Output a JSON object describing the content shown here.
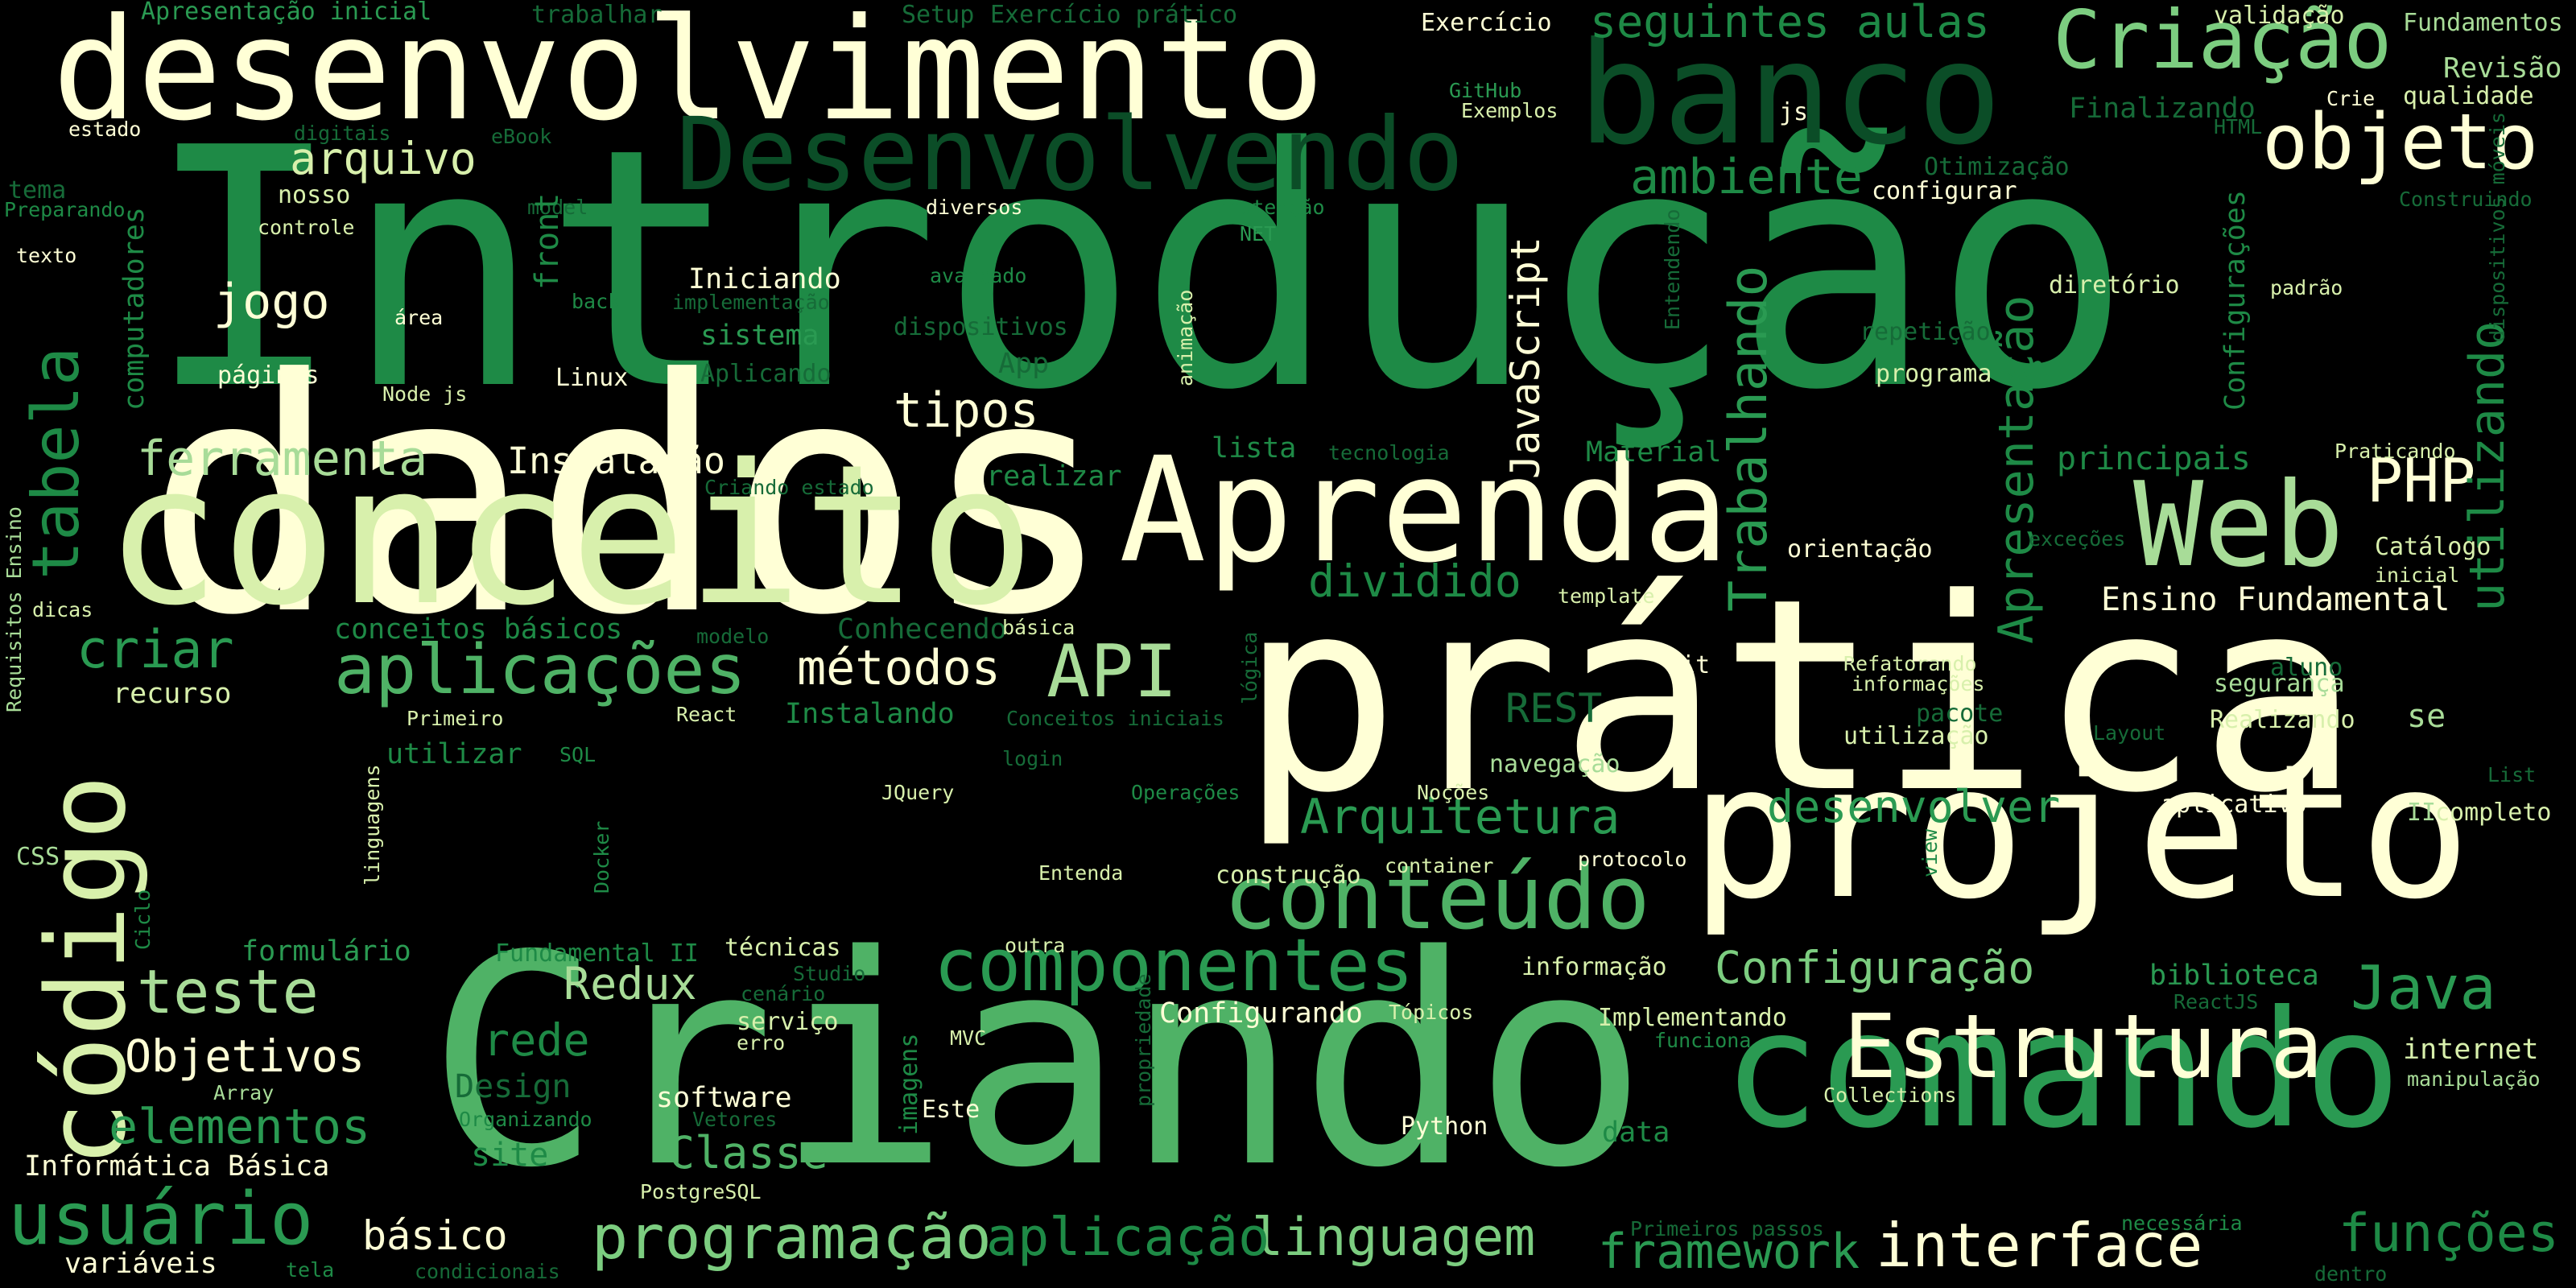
{
  "words": [
    {
      "text": "Introdução",
      "color": "#1e8a46"
    },
    {
      "text": "dados",
      "color": "#ffffd6"
    },
    {
      "text": "prática",
      "color": "#ffffd6"
    },
    {
      "text": "Criando",
      "color": "#4fb266"
    },
    {
      "text": "conceito",
      "color": "#d8f0ac"
    },
    {
      "text": "desenvolvimento",
      "color": "#ffffd6"
    },
    {
      "text": "projeto",
      "color": "#ffffd6"
    },
    {
      "text": "comando",
      "color": "#2a9a52"
    },
    {
      "text": "banco",
      "color": "#0b4d27"
    },
    {
      "text": "Aprenda",
      "color": "#ffffd6"
    },
    {
      "text": "código",
      "color": "#d8f0ac"
    },
    {
      "text": "Estrutura",
      "color": "#ffffd6"
    },
    {
      "text": "Web",
      "color": "#a8dc98"
    },
    {
      "text": "Desenvolvendo",
      "color": "#0b4d27"
    },
    {
      "text": "conteúdo",
      "color": "#4fb266"
    },
    {
      "text": "componentes",
      "color": "#2a9a52"
    },
    {
      "text": "Criação",
      "color": "#7ccd80"
    },
    {
      "text": "objeto",
      "color": "#ffffd6"
    },
    {
      "text": "aplicações",
      "color": "#4fb266"
    },
    {
      "text": "API",
      "color": "#a8dc98"
    },
    {
      "text": "tabela",
      "color": "#1e8a46"
    },
    {
      "text": "PHP",
      "color": "#ffffd6"
    },
    {
      "text": "Java",
      "color": "#2a9a52"
    },
    {
      "text": "usuário",
      "color": "#2a9a52"
    },
    {
      "text": "programação",
      "color": "#7ccd80"
    },
    {
      "text": "interface",
      "color": "#ffffd6"
    },
    {
      "text": "linguagem",
      "color": "#7ccd80"
    },
    {
      "text": "aplicação",
      "color": "#1e8a46"
    },
    {
      "text": "funções",
      "color": "#1e8a46"
    },
    {
      "text": "framework",
      "color": "#2a9a52"
    },
    {
      "text": "Trabalhando",
      "color": "#2a9a52"
    },
    {
      "text": "Apresentação",
      "color": "#1e8a46"
    },
    {
      "text": "utilizando",
      "color": "#1e8a46"
    },
    {
      "text": "Configuração",
      "color": "#7ccd80"
    },
    {
      "text": "Arquitetura",
      "color": "#2a9a52"
    },
    {
      "text": "desenvolver",
      "color": "#2a9a52"
    },
    {
      "text": "métodos",
      "color": "#ffffd6"
    },
    {
      "text": "criar",
      "color": "#2a9a52"
    },
    {
      "text": "teste",
      "color": "#a8dc98"
    },
    {
      "text": "rede",
      "color": "#1e8a46"
    },
    {
      "text": "Redux",
      "color": "#a8dc98"
    },
    {
      "text": "Classe",
      "color": "#4fb266"
    },
    {
      "text": "elementos",
      "color": "#2a9a52"
    },
    {
      "text": "Objetivos",
      "color": "#ffffd6"
    },
    {
      "text": "seguintes aulas",
      "color": "#1e8a46"
    },
    {
      "text": "arquivo",
      "color": "#d8f0ac"
    },
    {
      "text": "ambiente",
      "color": "#1e8a46"
    },
    {
      "text": "jogo",
      "color": "#ffffd6"
    },
    {
      "text": "ferramenta",
      "color": "#a8dc98"
    },
    {
      "text": "tipos",
      "color": "#ffffd6"
    },
    {
      "text": "dividido",
      "color": "#1e8a46"
    },
    {
      "text": "JavaScript",
      "color": "#ffffd6"
    },
    {
      "text": "Instalação",
      "color": "#ffffd6"
    },
    {
      "text": "principais",
      "color": "#1e8a46"
    },
    {
      "text": "Ensino Fundamental",
      "color": "#ffffd6"
    },
    {
      "text": "básico",
      "color": "#ffffd6"
    },
    {
      "text": "site",
      "color": "#1e8a46"
    },
    {
      "text": "Design",
      "color": "#166b38"
    },
    {
      "text": "REST",
      "color": "#166b38"
    },
    {
      "text": "Revisão",
      "color": "#a8dc98"
    },
    {
      "text": "qualidade",
      "color": "#d8f0ac"
    },
    {
      "text": "Fundamentos",
      "color": "#a8dc98"
    },
    {
      "text": "validação",
      "color": "#d8f0ac"
    },
    {
      "text": "Exercício",
      "color": "#ffffd6"
    },
    {
      "text": "Setup",
      "color": "#166b38"
    },
    {
      "text": "Exercício prático",
      "color": "#166b38"
    },
    {
      "text": "Apresentação inicial",
      "color": "#2a9a52"
    },
    {
      "text": "trabalhar",
      "color": "#166b38"
    },
    {
      "text": "Finalizando",
      "color": "#166b38"
    },
    {
      "text": "Otimização",
      "color": "#166b38"
    },
    {
      "text": "GitHub",
      "color": "#2a9a52"
    },
    {
      "text": "Exemplos",
      "color": "#d8f0ac"
    },
    {
      "text": "js",
      "color": "#ffffd6"
    },
    {
      "text": "HTML",
      "color": "#166b38"
    },
    {
      "text": "Crie",
      "color": "#ffffd6"
    },
    {
      "text": "configurar",
      "color": "#ffffd6"
    },
    {
      "text": "Construindo",
      "color": "#166b38"
    },
    {
      "text": "estado",
      "color": "#ffffd6"
    },
    {
      "text": "digitais",
      "color": "#166b38"
    },
    {
      "text": "eBook",
      "color": "#166b38"
    },
    {
      "text": "tema",
      "color": "#166b38"
    },
    {
      "text": "nosso",
      "color": "#d8f0ac"
    },
    {
      "text": "Preparando",
      "color": "#1e8a46"
    },
    {
      "text": "controle",
      "color": "#d8f0ac"
    },
    {
      "text": "model",
      "color": "#166b38"
    },
    {
      "text": "diversos",
      "color": "#ffffd6"
    },
    {
      "text": "manutenção",
      "color": "#1e8a46"
    },
    {
      "text": "NET",
      "color": "#2a9a52"
    },
    {
      "text": "texto",
      "color": "#ffffd6"
    },
    {
      "text": "computadores",
      "color": "#1e8a46"
    },
    {
      "text": "front",
      "color": "#1e8a46"
    },
    {
      "text": "back",
      "color": "#1e8a46"
    },
    {
      "text": "área",
      "color": "#ffffd6"
    },
    {
      "text": "Iniciando",
      "color": "#ffffd6"
    },
    {
      "text": "implementação",
      "color": "#166b38"
    },
    {
      "text": "avançado",
      "color": "#1e8a46"
    },
    {
      "text": "dispositivos",
      "color": "#166b38"
    },
    {
      "text": "sistema",
      "color": "#2a9a52"
    },
    {
      "text": "App",
      "color": "#166b38"
    },
    {
      "text": "Aplicando",
      "color": "#166b38"
    },
    {
      "text": "animação",
      "color": "#d8f0ac"
    },
    {
      "text": "Entendendo",
      "color": "#166b38"
    },
    {
      "text": "repetição",
      "color": "#166b38"
    },
    {
      "text": "diretório",
      "color": "#d8f0ac"
    },
    {
      "text": "padrão",
      "color": "#d8f0ac"
    },
    {
      "text": "dispositivos móveis",
      "color": "#166b38"
    },
    {
      "text": "Configurações",
      "color": "#1e8a46"
    },
    {
      "text": "programa",
      "color": "#d8f0ac"
    },
    {
      "text": "páginas",
      "color": "#ffffd6"
    },
    {
      "text": "Node js",
      "color": "#d8f0ac"
    },
    {
      "text": "Linux",
      "color": "#ffffd6"
    },
    {
      "text": "lista",
      "color": "#1e8a46"
    },
    {
      "text": "tecnologia",
      "color": "#166b38"
    },
    {
      "text": "Material",
      "color": "#1e8a46"
    },
    {
      "text": "realizar",
      "color": "#1e8a46"
    },
    {
      "text": "Criando estado",
      "color": "#166b38"
    },
    {
      "text": "Praticando",
      "color": "#d8f0ac"
    },
    {
      "text": "orientação",
      "color": "#ffffd6"
    },
    {
      "text": "exceções",
      "color": "#166b38"
    },
    {
      "text": "Catálogo",
      "color": "#d8f0ac"
    },
    {
      "text": "inicial",
      "color": "#d8f0ac"
    },
    {
      "text": "Requisitos Ensino",
      "color": "#a8dc98"
    },
    {
      "text": "dicas",
      "color": "#d8f0ac"
    },
    {
      "text": "conceitos básicos",
      "color": "#1e8a46"
    },
    {
      "text": "modelo",
      "color": "#166b38"
    },
    {
      "text": "Conhecendo",
      "color": "#166b38"
    },
    {
      "text": "básica",
      "color": "#d8f0ac"
    },
    {
      "text": "template",
      "color": "#d8f0ac"
    },
    {
      "text": "lógica",
      "color": "#166b38"
    },
    {
      "text": "recurso",
      "color": "#d8f0ac"
    },
    {
      "text": "Primeiro",
      "color": "#d8f0ac"
    },
    {
      "text": "React",
      "color": "#d8f0ac"
    },
    {
      "text": "Instalando",
      "color": "#1e8a46"
    },
    {
      "text": "Conceitos iniciais",
      "color": "#166b38"
    },
    {
      "text": "Git",
      "color": "#ffffd6"
    },
    {
      "text": "Refatorando",
      "color": "#d8f0ac"
    },
    {
      "text": "informações",
      "color": "#d8f0ac"
    },
    {
      "text": "pacote",
      "color": "#166b38"
    },
    {
      "text": "utilização",
      "color": "#d8f0ac"
    },
    {
      "text": "segurança",
      "color": "#a8dc98"
    },
    {
      "text": "aluno",
      "color": "#166b38"
    },
    {
      "text": "Realizando",
      "color": "#d8f0ac"
    },
    {
      "text": "se",
      "color": "#a8dc98"
    },
    {
      "text": "Layout",
      "color": "#166b38"
    },
    {
      "text": "List",
      "color": "#166b38"
    },
    {
      "text": "SQL",
      "color": "#1e8a46"
    },
    {
      "text": "login",
      "color": "#166b38"
    },
    {
      "text": "navegação",
      "color": "#a8dc98"
    },
    {
      "text": "utilizar",
      "color": "#1e8a46"
    },
    {
      "text": "linguagens",
      "color": "#d8f0ac"
    },
    {
      "text": "JQuery",
      "color": "#d8f0ac"
    },
    {
      "text": "Operações",
      "color": "#1e8a46"
    },
    {
      "text": "Noções",
      "color": "#d8f0ac"
    },
    {
      "text": "aplicativo",
      "color": "#ffffd6"
    },
    {
      "text": "II",
      "color": "#a8dc98"
    },
    {
      "text": "completo",
      "color": "#d8f0ac"
    },
    {
      "text": "CSS",
      "color": "#a8dc98"
    },
    {
      "text": "Docker",
      "color": "#1e8a46"
    },
    {
      "text": "Entenda",
      "color": "#d8f0ac"
    },
    {
      "text": "construção",
      "color": "#d8f0ac"
    },
    {
      "text": "container",
      "color": "#d8f0ac"
    },
    {
      "text": "protocolo",
      "color": "#ffffd6"
    },
    {
      "text": "view",
      "color": "#1e8a46"
    },
    {
      "text": "Ciclo",
      "color": "#1e8a46"
    },
    {
      "text": "formulário",
      "color": "#2a9a52"
    },
    {
      "text": "Fundamental II",
      "color": "#1e8a46"
    },
    {
      "text": "técnicas",
      "color": "#d8f0ac"
    },
    {
      "text": "outra",
      "color": "#d8f0ac"
    },
    {
      "text": "Studio",
      "color": "#166b38"
    },
    {
      "text": "cenário",
      "color": "#166b38"
    },
    {
      "text": "informação",
      "color": "#d8f0ac"
    },
    {
      "text": "biblioteca",
      "color": "#2a9a52"
    },
    {
      "text": "ReactJS",
      "color": "#166b38"
    },
    {
      "text": "Configurando",
      "color": "#ffffd6"
    },
    {
      "text": "Tópicos",
      "color": "#d8f0ac"
    },
    {
      "text": "serviço",
      "color": "#d8f0ac"
    },
    {
      "text": "erro",
      "color": "#d8f0ac"
    },
    {
      "text": "imagens",
      "color": "#1e8a46"
    },
    {
      "text": "MVC",
      "color": "#d8f0ac"
    },
    {
      "text": "propriedade",
      "color": "#166b38"
    },
    {
      "text": "Implementando",
      "color": "#d8f0ac"
    },
    {
      "text": "funciona",
      "color": "#1e8a46"
    },
    {
      "text": "internet",
      "color": "#d8f0ac"
    },
    {
      "text": "manipulação",
      "color": "#a8dc98"
    },
    {
      "text": "Array",
      "color": "#a8dc98"
    },
    {
      "text": "Organizando",
      "color": "#1e8a46"
    },
    {
      "text": "Vetores",
      "color": "#166b38"
    },
    {
      "text": "software",
      "color": "#ffffd6"
    },
    {
      "text": "Este",
      "color": "#ffffd6"
    },
    {
      "text": "Python",
      "color": "#ffffd6"
    },
    {
      "text": "Collections",
      "color": "#d8f0ac"
    },
    {
      "text": "data",
      "color": "#1e8a46"
    },
    {
      "text": "Informática Básica",
      "color": "#ffffd6"
    },
    {
      "text": "PostgreSQL",
      "color": "#d8f0ac"
    },
    {
      "text": "Primeiros passos",
      "color": "#166b38"
    },
    {
      "text": "necessária",
      "color": "#1e8a46"
    },
    {
      "text": "variáveis",
      "color": "#ffffd6"
    },
    {
      "text": "tela",
      "color": "#1e8a46"
    },
    {
      "text": "condicionais",
      "color": "#166b38"
    },
    {
      "text": "dentro",
      "color": "#166b38"
    }
  ]
}
